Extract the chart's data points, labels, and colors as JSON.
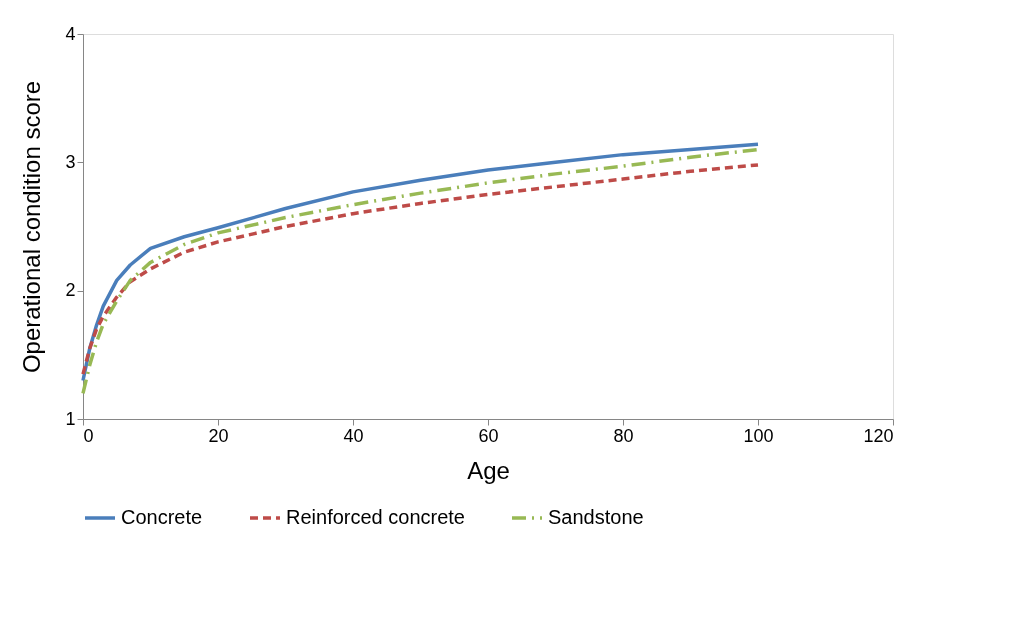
{
  "chart_data": {
    "type": "line",
    "xlabel": "Age",
    "ylabel": "Operational condition score",
    "xlim": [
      0,
      120
    ],
    "xticks": [
      0,
      20,
      40,
      60,
      80,
      100,
      120
    ],
    "ylim": [
      1,
      4
    ],
    "yticks": [
      1,
      2,
      3,
      4
    ],
    "grid": false,
    "legend": "bottom",
    "marker": "none",
    "series": [
      {
        "name": "Concrete",
        "color": "#4a7ebb",
        "line_style": "solid",
        "x": [
          0,
          1,
          2,
          3,
          5,
          7,
          10,
          15,
          20,
          30,
          40,
          50,
          60,
          70,
          80,
          90,
          100
        ],
        "values": [
          1.3,
          1.55,
          1.73,
          1.88,
          2.08,
          2.2,
          2.33,
          2.42,
          2.49,
          2.64,
          2.77,
          2.86,
          2.94,
          3.0,
          3.06,
          3.1,
          3.14
        ]
      },
      {
        "name": "Reinforced concrete",
        "color": "#be4b48",
        "line_style": "dashed",
        "x": [
          0,
          1,
          2,
          3,
          5,
          7,
          10,
          15,
          20,
          30,
          40,
          50,
          60,
          70,
          80,
          90,
          100
        ],
        "values": [
          1.35,
          1.55,
          1.7,
          1.8,
          1.95,
          2.07,
          2.17,
          2.3,
          2.38,
          2.5,
          2.6,
          2.68,
          2.75,
          2.81,
          2.87,
          2.93,
          2.98
        ]
      },
      {
        "name": "Sandstone",
        "color": "#98b954",
        "line_style": "dashdot",
        "x": [
          0,
          1,
          2,
          3,
          5,
          7,
          10,
          15,
          20,
          30,
          40,
          50,
          60,
          70,
          80,
          90,
          100
        ],
        "values": [
          1.2,
          1.42,
          1.6,
          1.74,
          1.92,
          2.08,
          2.22,
          2.36,
          2.45,
          2.57,
          2.67,
          2.76,
          2.84,
          2.91,
          2.97,
          3.04,
          3.1
        ]
      }
    ]
  }
}
